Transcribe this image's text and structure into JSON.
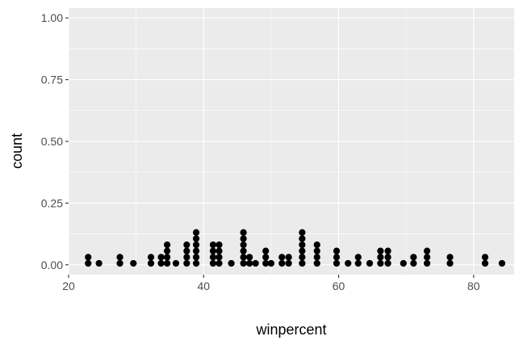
{
  "chart_data": {
    "type": "scatter",
    "subtype": "dotplot",
    "title": "",
    "xlabel": "winpercent",
    "ylabel": "count",
    "xlim": [
      20,
      86
    ],
    "ylim": [
      -0.04,
      1.04
    ],
    "x_ticks": [
      20,
      40,
      60,
      80
    ],
    "x_tick_labels": [
      "20",
      "40",
      "60",
      "80"
    ],
    "y_ticks": [
      0,
      0.25,
      0.5,
      0.75,
      1.0
    ],
    "y_tick_labels": [
      "0.00",
      "0.25",
      "0.50",
      "0.75",
      "1.00"
    ],
    "grid": true,
    "legend": "none",
    "colors": {
      "panel": "#EBEBEB",
      "grid": "#FFFFFF",
      "dots": "#000000",
      "ticks": "#333333"
    },
    "stacks": [
      {
        "x": 22.9,
        "count": 2
      },
      {
        "x": 24.5,
        "count": 1
      },
      {
        "x": 27.6,
        "count": 2
      },
      {
        "x": 29.6,
        "count": 1
      },
      {
        "x": 32.2,
        "count": 2
      },
      {
        "x": 33.7,
        "count": 2
      },
      {
        "x": 34.6,
        "count": 4
      },
      {
        "x": 35.9,
        "count": 1
      },
      {
        "x": 37.5,
        "count": 4
      },
      {
        "x": 38.9,
        "count": 6
      },
      {
        "x": 41.4,
        "count": 4
      },
      {
        "x": 42.3,
        "count": 4
      },
      {
        "x": 44.1,
        "count": 1
      },
      {
        "x": 45.9,
        "count": 6
      },
      {
        "x": 46.8,
        "count": 2
      },
      {
        "x": 47.7,
        "count": 1
      },
      {
        "x": 49.2,
        "count": 3
      },
      {
        "x": 50.0,
        "count": 1
      },
      {
        "x": 51.6,
        "count": 2
      },
      {
        "x": 52.6,
        "count": 2
      },
      {
        "x": 54.6,
        "count": 6
      },
      {
        "x": 56.8,
        "count": 4
      },
      {
        "x": 59.7,
        "count": 3
      },
      {
        "x": 61.4,
        "count": 1
      },
      {
        "x": 62.9,
        "count": 2
      },
      {
        "x": 64.6,
        "count": 1
      },
      {
        "x": 66.2,
        "count": 3
      },
      {
        "x": 67.3,
        "count": 3
      },
      {
        "x": 69.6,
        "count": 1
      },
      {
        "x": 71.1,
        "count": 2
      },
      {
        "x": 73.1,
        "count": 3
      },
      {
        "x": 76.5,
        "count": 2
      },
      {
        "x": 81.7,
        "count": 2
      },
      {
        "x": 84.2,
        "count": 1
      }
    ]
  }
}
